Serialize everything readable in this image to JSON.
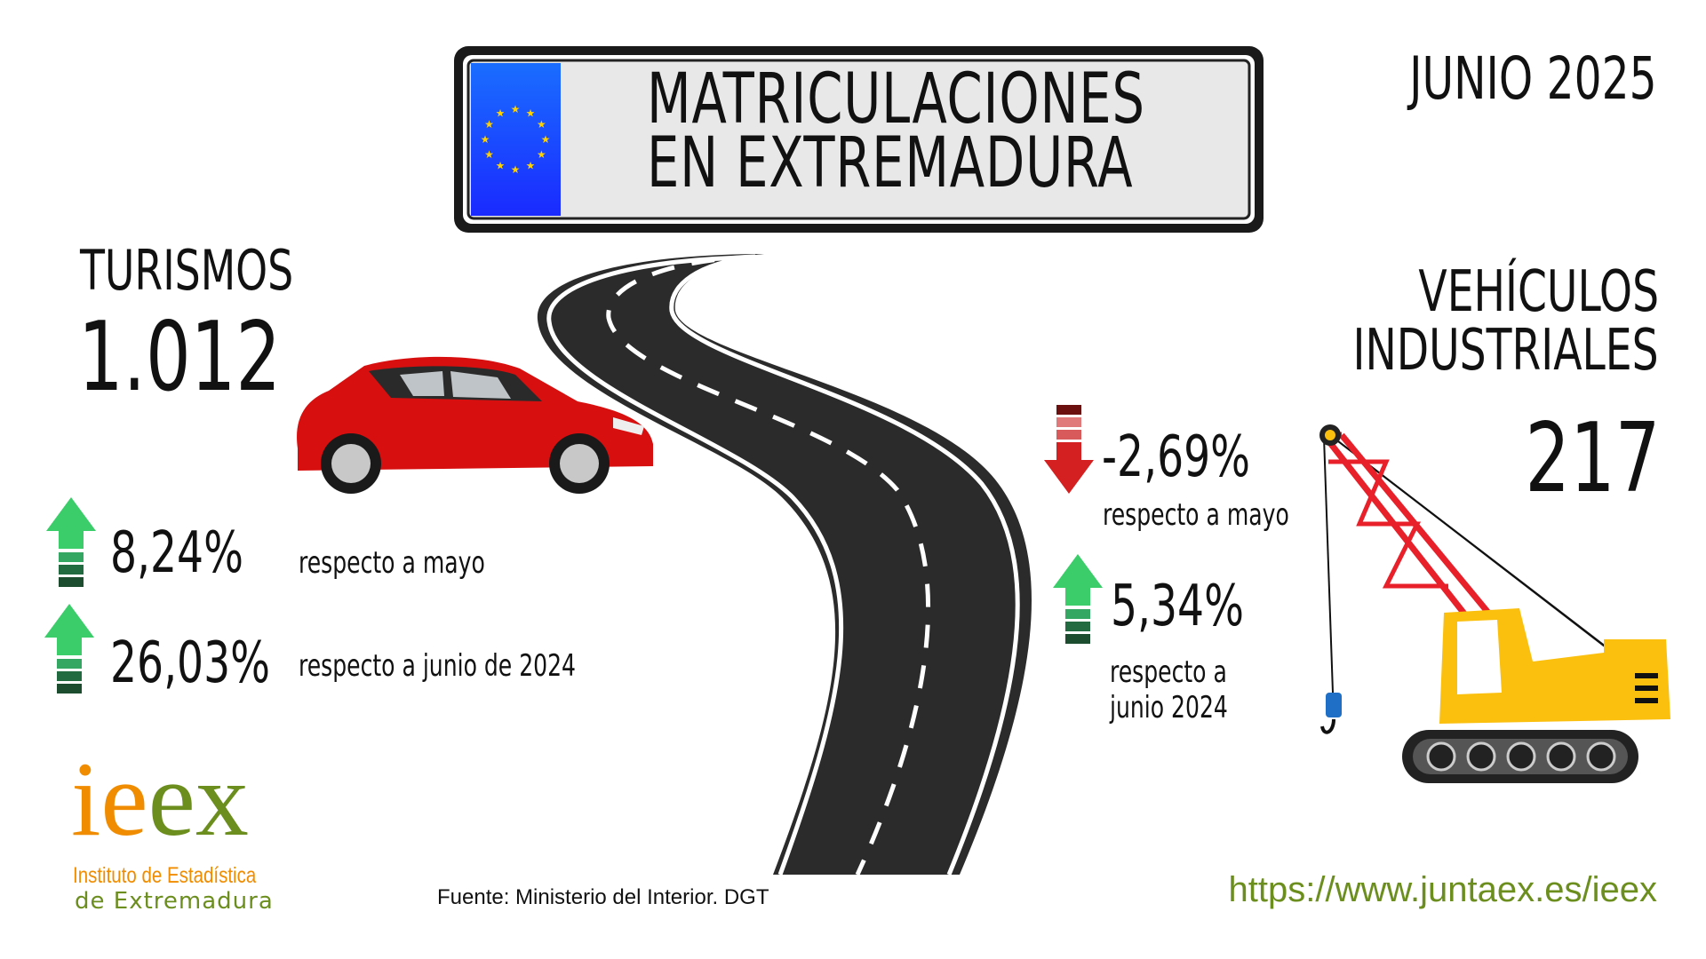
{
  "plate": {
    "title_line1": "MATRICULACIONES",
    "title_line2": "EN EXTREMADURA",
    "eu_blue": "#1a3cff",
    "star_color": "#ffd200"
  },
  "date": "JUNIO 2025",
  "turismos": {
    "label": "TURISMOS",
    "value": "1.012",
    "changes": [
      {
        "direction": "up",
        "value": "8,24%",
        "label": "respecto a mayo"
      },
      {
        "direction": "up",
        "value": "26,03%",
        "label": "respecto a junio de 2024"
      }
    ]
  },
  "industriales": {
    "label_line1": "VEHÍCULOS",
    "label_line2": "INDUSTRIALES",
    "value": "217",
    "changes": [
      {
        "direction": "down",
        "value": "-2,69%",
        "label": "respecto a mayo"
      },
      {
        "direction": "up",
        "value": "5,34%",
        "label_line1": "respecto a",
        "label_line2": "junio 2024"
      }
    ]
  },
  "source": "Fuente: Ministerio del Interior. DGT",
  "url": "https://www.juntaex.es/ieex",
  "logo": {
    "mark": "ieex",
    "line1": "Instituto de Estadística",
    "line2": "de Extremadura",
    "orange": "#f08c00",
    "green": "#6b8e1e"
  },
  "colors": {
    "up": "#3acd6a",
    "down": "#d42020",
    "car": "#d80f0f",
    "crane_boom": "#e8202a",
    "crane_body": "#fbbf0e"
  }
}
